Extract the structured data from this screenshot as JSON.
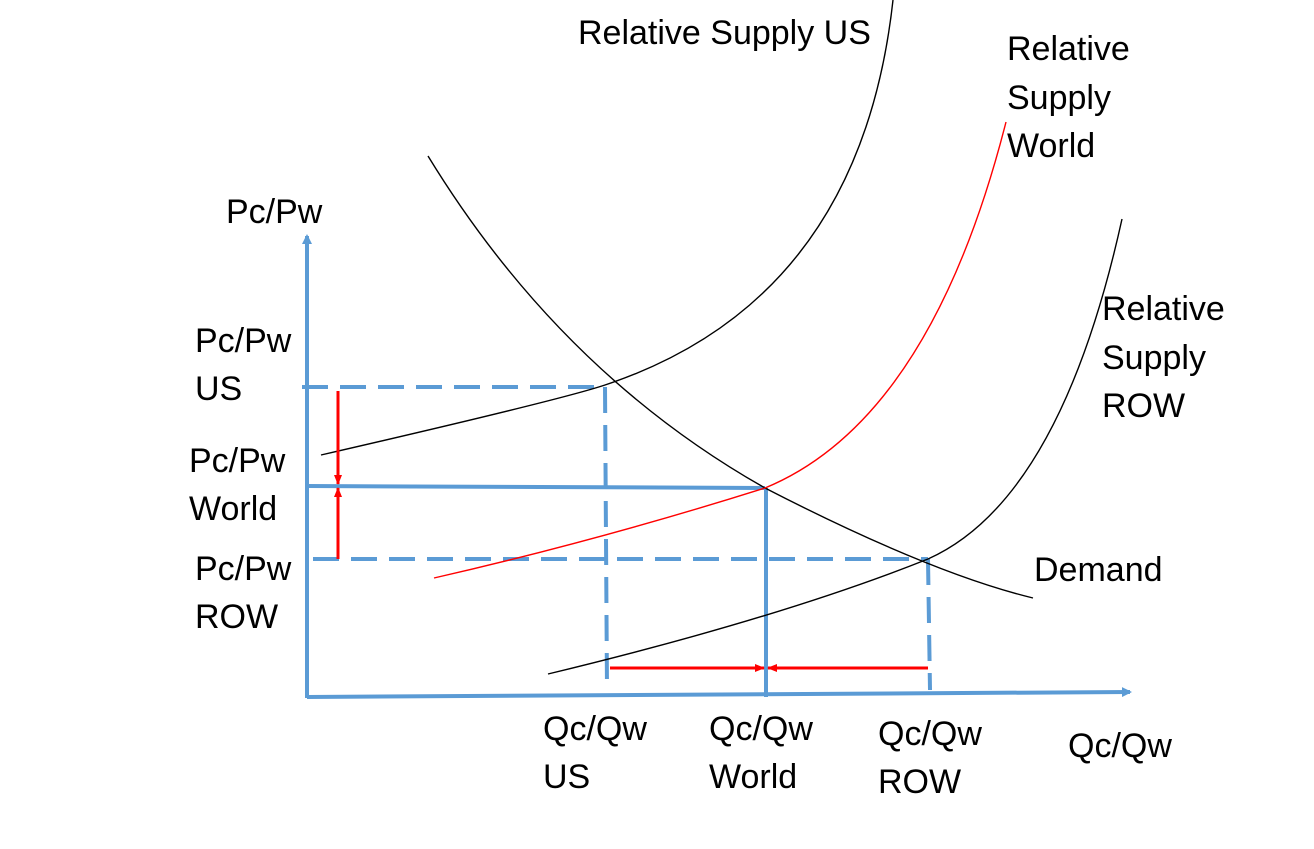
{
  "colors": {
    "axis": "#5b9bd5",
    "guide": "#5b9bd5",
    "curve_black": "#000000",
    "curve_world": "#ff0000",
    "arrow": "#ff0000",
    "text": "#000000",
    "background": "#ffffff"
  },
  "axes": {
    "y_label": "Pc/Pw",
    "x_label": "Qc/Qw"
  },
  "curves": {
    "supply_us": "Relative Supply US",
    "supply_world": [
      "Relative",
      "Supply",
      "World"
    ],
    "supply_row": [
      "Relative",
      "Supply",
      "ROW"
    ],
    "demand": "Demand"
  },
  "price_labels": {
    "us": [
      "Pc/Pw",
      "US"
    ],
    "world": [
      "Pc/Pw",
      "World"
    ],
    "row": [
      "Pc/Pw",
      "ROW"
    ]
  },
  "quantity_labels": {
    "us": [
      "Qc/Qw",
      "US"
    ],
    "world": [
      "Qc/Qw",
      "World"
    ],
    "row": [
      "Qc/Qw",
      "ROW"
    ]
  }
}
